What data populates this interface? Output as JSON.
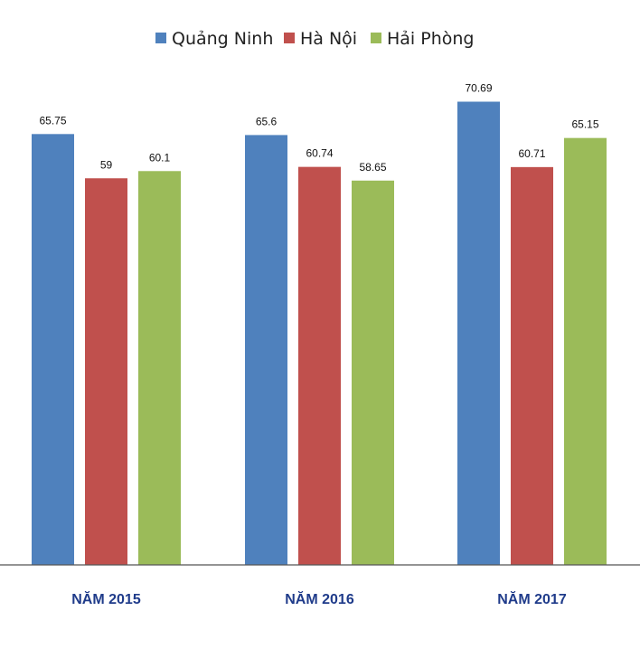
{
  "chart_data": {
    "type": "bar",
    "categories": [
      "NĂM 2015",
      "NĂM 2016",
      "NĂM 2017"
    ],
    "series": [
      {
        "name": "Quảng Ninh",
        "color": "#4f81bd",
        "values": [
          65.75,
          65.6,
          70.69
        ]
      },
      {
        "name": "Hà Nội",
        "color": "#c0504d",
        "values": [
          59,
          60.74,
          60.71
        ]
      },
      {
        "name": "Hải Phòng",
        "color": "#9bbb59",
        "values": [
          60.1,
          58.65,
          65.15
        ]
      }
    ],
    "data_labels": [
      [
        "65.75",
        "59",
        "60.1"
      ],
      [
        "65.6",
        "60.74",
        "58.65"
      ],
      [
        "70.69",
        "60.71",
        "65.15"
      ]
    ],
    "ylim": [
      0,
      75
    ],
    "grid": false,
    "legend": "top-center"
  }
}
